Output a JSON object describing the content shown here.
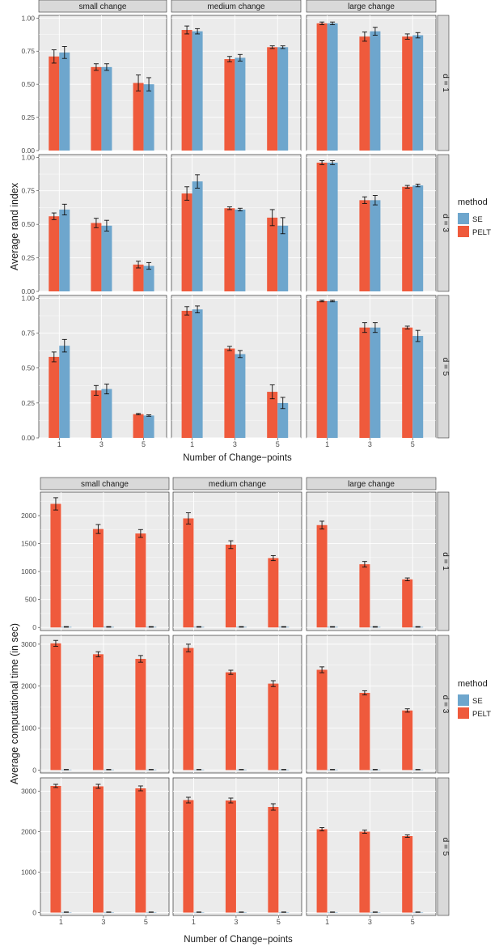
{
  "colors": {
    "SE": "#6ea6cd",
    "PELT": "#ef5a3c",
    "panel_bg": "#ebebeb",
    "strip_bg": "#d9d9d9",
    "grid": "#ffffff"
  },
  "chart_data": [
    {
      "type": "bar",
      "ylabel": "Average rand index",
      "xlabel": "Number of Change−points",
      "legend": {
        "title": "method",
        "entries": [
          "SE",
          "PELT"
        ],
        "placement": "right"
      },
      "facet_cols": [
        "small change",
        "medium change",
        "large change"
      ],
      "facet_rows": [
        "d = 1",
        "d = 3",
        "d = 5"
      ],
      "categories": [
        "1",
        "3",
        "5"
      ],
      "ylim": [
        0,
        1.02
      ],
      "yticks": [
        "0.00",
        "0.25",
        "0.50",
        "0.75",
        "1.00"
      ],
      "grid": true,
      "panels": [
        {
          "row": "d = 1",
          "col": "small change",
          "PELT": [
            0.71,
            0.63,
            0.51
          ],
          "PELT_err": [
            0.05,
            0.025,
            0.06
          ],
          "SE": [
            0.74,
            0.63,
            0.5
          ],
          "SE_err": [
            0.045,
            0.025,
            0.05
          ]
        },
        {
          "row": "d = 1",
          "col": "medium change",
          "PELT": [
            0.91,
            0.69,
            0.78
          ],
          "PELT_err": [
            0.03,
            0.02,
            0.01
          ],
          "SE": [
            0.9,
            0.7,
            0.78
          ],
          "SE_err": [
            0.02,
            0.025,
            0.01
          ]
        },
        {
          "row": "d = 1",
          "col": "large change",
          "PELT": [
            0.96,
            0.86,
            0.86
          ],
          "PELT_err": [
            0.01,
            0.035,
            0.02
          ],
          "SE": [
            0.96,
            0.9,
            0.87
          ],
          "SE_err": [
            0.01,
            0.03,
            0.02
          ]
        },
        {
          "row": "d = 3",
          "col": "small change",
          "PELT": [
            0.56,
            0.51,
            0.2
          ],
          "PELT_err": [
            0.025,
            0.035,
            0.025
          ],
          "SE": [
            0.61,
            0.49,
            0.19
          ],
          "SE_err": [
            0.04,
            0.04,
            0.025
          ]
        },
        {
          "row": "d = 3",
          "col": "medium change",
          "PELT": [
            0.73,
            0.62,
            0.55
          ],
          "PELT_err": [
            0.05,
            0.01,
            0.06
          ],
          "SE": [
            0.82,
            0.61,
            0.49
          ],
          "SE_err": [
            0.05,
            0.01,
            0.06
          ]
        },
        {
          "row": "d = 3",
          "col": "large change",
          "PELT": [
            0.96,
            0.68,
            0.78
          ],
          "PELT_err": [
            0.015,
            0.025,
            0.01
          ],
          "SE": [
            0.96,
            0.68,
            0.79
          ],
          "SE_err": [
            0.015,
            0.035,
            0.01
          ]
        },
        {
          "row": "d = 5",
          "col": "small change",
          "PELT": [
            0.58,
            0.34,
            0.17
          ],
          "PELT_err": [
            0.035,
            0.035,
            0.005
          ],
          "SE": [
            0.66,
            0.35,
            0.16
          ],
          "SE_err": [
            0.045,
            0.035,
            0.005
          ]
        },
        {
          "row": "d = 5",
          "col": "medium change",
          "PELT": [
            0.91,
            0.64,
            0.33
          ],
          "PELT_err": [
            0.03,
            0.015,
            0.05
          ],
          "SE": [
            0.92,
            0.6,
            0.25
          ],
          "SE_err": [
            0.025,
            0.025,
            0.04
          ]
        },
        {
          "row": "d = 5",
          "col": "large change",
          "PELT": [
            0.98,
            0.79,
            0.79
          ],
          "PELT_err": [
            0.005,
            0.035,
            0.01
          ],
          "SE": [
            0.98,
            0.79,
            0.73
          ],
          "SE_err": [
            0.005,
            0.035,
            0.04
          ]
        }
      ]
    },
    {
      "type": "bar",
      "ylabel": "Average computational time (in sec)",
      "xlabel": "Number of Change−points",
      "legend": {
        "title": "method",
        "entries": [
          "SE",
          "PELT"
        ],
        "placement": "right"
      },
      "facet_cols": [
        "small change",
        "medium change",
        "large change"
      ],
      "facet_rows": [
        "d = 1",
        "d = 3",
        "d = 5"
      ],
      "categories": [
        "1",
        "3",
        "5"
      ],
      "grid": true,
      "panels": [
        {
          "row": "d = 1",
          "col": "small change",
          "PELT": [
            2210,
            1760,
            1680
          ],
          "PELT_err": [
            110,
            80,
            70
          ],
          "SE": [
            10,
            10,
            10
          ],
          "SE_err": [
            5,
            5,
            5
          ]
        },
        {
          "row": "d = 1",
          "col": "medium change",
          "PELT": [
            1950,
            1480,
            1240
          ],
          "PELT_err": [
            100,
            70,
            45
          ],
          "SE": [
            10,
            10,
            10
          ],
          "SE_err": [
            5,
            5,
            5
          ]
        },
        {
          "row": "d = 1",
          "col": "large change",
          "PELT": [
            1830,
            1130,
            860
          ],
          "PELT_err": [
            70,
            50,
            25
          ],
          "SE": [
            10,
            10,
            10
          ],
          "SE_err": [
            5,
            5,
            5
          ]
        },
        {
          "row": "d = 3",
          "col": "small change",
          "PELT": [
            3020,
            2760,
            2650
          ],
          "PELT_err": [
            70,
            60,
            80
          ],
          "SE": [
            10,
            10,
            10
          ],
          "SE_err": [
            5,
            5,
            5
          ]
        },
        {
          "row": "d = 3",
          "col": "medium change",
          "PELT": [
            2910,
            2330,
            2060
          ],
          "PELT_err": [
            90,
            50,
            70
          ],
          "SE": [
            10,
            10,
            10
          ],
          "SE_err": [
            5,
            5,
            5
          ]
        },
        {
          "row": "d = 3",
          "col": "large change",
          "PELT": [
            2390,
            1840,
            1420
          ],
          "PELT_err": [
            70,
            50,
            40
          ],
          "SE": [
            10,
            10,
            10
          ],
          "SE_err": [
            5,
            5,
            5
          ]
        },
        {
          "row": "d = 5",
          "col": "small change",
          "PELT": [
            3130,
            3120,
            3070
          ],
          "PELT_err": [
            40,
            50,
            60
          ],
          "SE": [
            10,
            10,
            10
          ],
          "SE_err": [
            5,
            5,
            5
          ]
        },
        {
          "row": "d = 5",
          "col": "medium change",
          "PELT": [
            2780,
            2770,
            2610
          ],
          "PELT_err": [
            70,
            60,
            80
          ],
          "SE": [
            10,
            10,
            10
          ],
          "SE_err": [
            5,
            5,
            5
          ]
        },
        {
          "row": "d = 5",
          "col": "large change",
          "PELT": [
            2060,
            2000,
            1890
          ],
          "PELT_err": [
            40,
            40,
            30
          ],
          "SE": [
            10,
            10,
            10
          ],
          "SE_err": [
            5,
            5,
            5
          ]
        }
      ],
      "row_scales": [
        {
          "row": "d = 1",
          "ylim": [
            -55,
            2420
          ],
          "yticks": [
            0,
            500,
            1000,
            1500,
            2000
          ]
        },
        {
          "row": "d = 3",
          "ylim": [
            -70,
            3210
          ],
          "yticks": [
            0,
            1000,
            2000,
            3000
          ]
        },
        {
          "row": "d = 5",
          "ylim": [
            -70,
            3330
          ],
          "yticks": [
            0,
            1000,
            2000,
            3000
          ]
        }
      ]
    }
  ]
}
